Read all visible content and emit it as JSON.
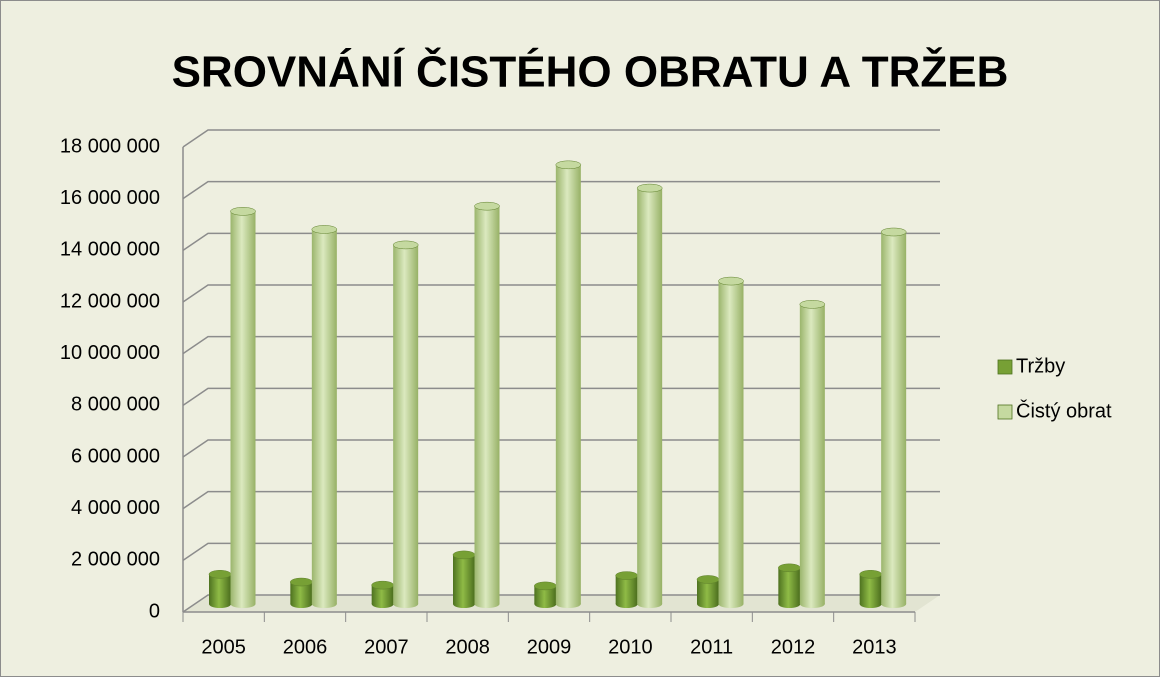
{
  "chart_data": {
    "type": "bar",
    "title": "SROVNÁNÍ ČISTÉHO OBRATU A TRŽEB",
    "categories": [
      "2005",
      "2006",
      "2007",
      "2008",
      "2009",
      "2010",
      "2011",
      "2012",
      "2013"
    ],
    "series": [
      {
        "name": "Tržby",
        "color": "#77a035",
        "values": [
          1150000,
          850000,
          730000,
          1900000,
          700000,
          1100000,
          950000,
          1400000,
          1150000
        ]
      },
      {
        "name": "Čistý obrat",
        "color": "#c5d9a0",
        "values": [
          15200000,
          14500000,
          13900000,
          15400000,
          17000000,
          16100000,
          12500000,
          11600000,
          14400000
        ]
      }
    ],
    "ylim": [
      0,
      18000000
    ],
    "yticks": [
      {
        "value": 0,
        "label": "0"
      },
      {
        "value": 2000000,
        "label": "2 000 000"
      },
      {
        "value": 4000000,
        "label": "4 000 000"
      },
      {
        "value": 6000000,
        "label": "6 000 000"
      },
      {
        "value": 8000000,
        "label": "8 000 000"
      },
      {
        "value": 10000000,
        "label": "10 000 000"
      },
      {
        "value": 12000000,
        "label": "12 000 000"
      },
      {
        "value": 14000000,
        "label": "14 000 000"
      },
      {
        "value": 16000000,
        "label": "16 000 000"
      },
      {
        "value": 18000000,
        "label": "18 000 000"
      }
    ],
    "grid": true,
    "legend": "right"
  }
}
